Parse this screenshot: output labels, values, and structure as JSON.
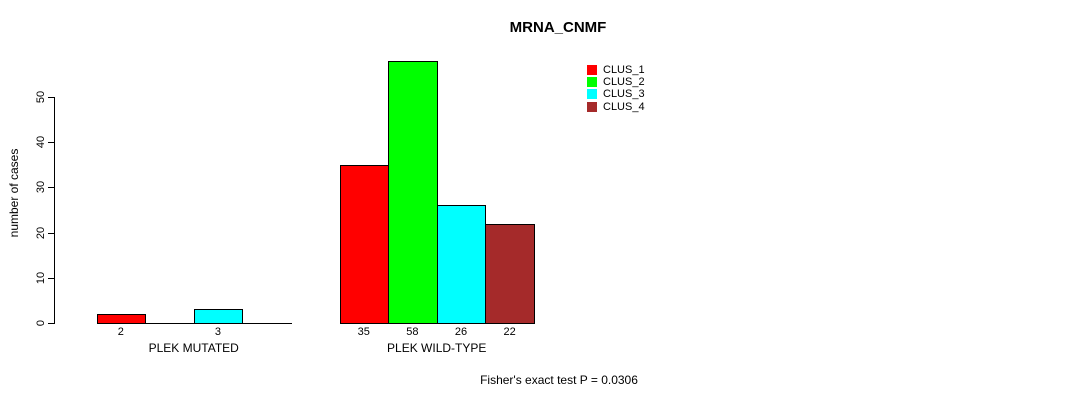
{
  "chart_data": {
    "type": "bar",
    "title": "MRNA_CNMF",
    "ylabel": "number of cases",
    "xlabel": "",
    "yticks": [
      0,
      10,
      20,
      30,
      40,
      50
    ],
    "ylim": [
      0,
      58
    ],
    "grid": false,
    "legend_position": "top-right-inside",
    "series": [
      {
        "name": "CLUS_1",
        "color": "#FF0000"
      },
      {
        "name": "CLUS_2",
        "color": "#00FF00"
      },
      {
        "name": "CLUS_3",
        "color": "#00FFFF"
      },
      {
        "name": "CLUS_4",
        "color": "#A52A2A"
      }
    ],
    "groups": [
      {
        "label": "PLEK MUTATED",
        "values": [
          2,
          0,
          3,
          0
        ],
        "bar_labels": [
          "2",
          "",
          "3",
          ""
        ]
      },
      {
        "label": "PLEK WILD-TYPE",
        "values": [
          35,
          58,
          26,
          22
        ],
        "bar_labels": [
          "35",
          "58",
          "26",
          "22"
        ]
      }
    ],
    "annotation": "Fisher's exact test P = 0.0306"
  },
  "colors": {
    "axis": "#000000",
    "text": "#000000",
    "background": "#FFFFFF"
  }
}
